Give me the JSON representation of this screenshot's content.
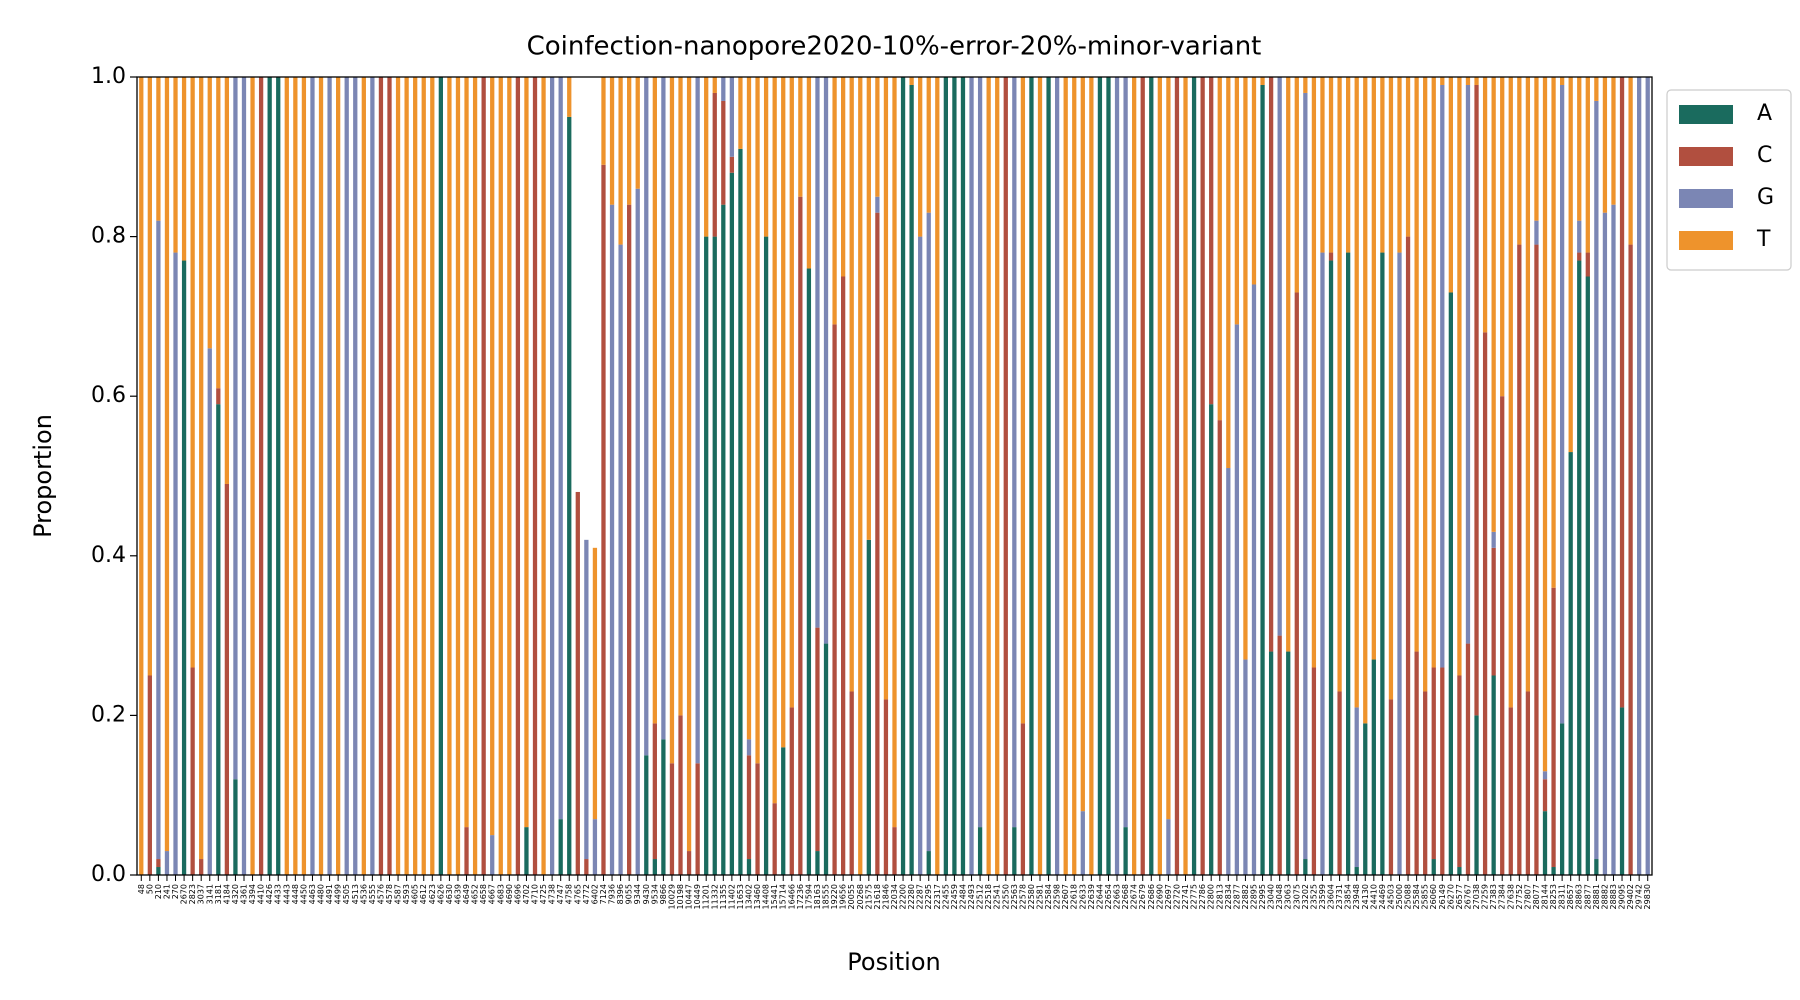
{
  "chart_data": {
    "type": "stacked_bar",
    "title": "Coinfection-nanopore2020-10%-error-20%-minor-variant",
    "x_label": "Position",
    "y_label": "Proportion",
    "legend": "outside upper right",
    "ylim": [
      0,
      1
    ],
    "yticks": [
      {
        "value": 0,
        "label": "0.0"
      },
      {
        "value": 0.2,
        "label": "0.2"
      },
      {
        "value": 0.4,
        "label": "0.4"
      },
      {
        "value": 0.6,
        "label": "0.6"
      },
      {
        "value": 0.8,
        "label": "0.8"
      },
      {
        "value": 1,
        "label": "1.0"
      }
    ],
    "categories": [
      "48",
      "50",
      "210",
      "241",
      "270",
      "2670",
      "2823",
      "3037",
      "3141",
      "3181",
      "4184",
      "4320",
      "4361",
      "4394",
      "4410",
      "4426",
      "4433",
      "4443",
      "4448",
      "4450",
      "4463",
      "4480",
      "4491",
      "4499",
      "4505",
      "4513",
      "4536",
      "4555",
      "4576",
      "4578",
      "4587",
      "4593",
      "4605",
      "4612",
      "4623",
      "4626",
      "4630",
      "4639",
      "4649",
      "4652",
      "4658",
      "4667",
      "4683",
      "4690",
      "4696",
      "4702",
      "4710",
      "4725",
      "4738",
      "4747",
      "4758",
      "4765",
      "4772",
      "6402",
      "7124",
      "7936",
      "8396",
      "9055",
      "9344",
      "9430",
      "9534",
      "9866",
      "10029",
      "10198",
      "10447",
      "10449",
      "11201",
      "11332",
      "11355",
      "11402",
      "11653",
      "13402",
      "13460",
      "14408",
      "15441",
      "15714",
      "16466",
      "17236",
      "17594",
      "18163",
      "18555",
      "19220",
      "19656",
      "20055",
      "20268",
      "21575",
      "21618",
      "21846",
      "22034",
      "22200",
      "22280",
      "22287",
      "22295",
      "22317",
      "22455",
      "22459",
      "22484",
      "22493",
      "22512",
      "22518",
      "22541",
      "22550",
      "22563",
      "22578",
      "22580",
      "22581",
      "22584",
      "22598",
      "22607",
      "22618",
      "22633",
      "22639",
      "22644",
      "22654",
      "22663",
      "22668",
      "22674",
      "22679",
      "22686",
      "22690",
      "22697",
      "22720",
      "22741",
      "22775",
      "22786",
      "22800",
      "22813",
      "22834",
      "22877",
      "22882",
      "22895",
      "22995",
      "23040",
      "23048",
      "23063",
      "23075",
      "23202",
      "23525",
      "23599",
      "23604",
      "23731",
      "23854",
      "23948",
      "24130",
      "24410",
      "24469",
      "24503",
      "25000",
      "25088",
      "25584",
      "25855",
      "26060",
      "26149",
      "26270",
      "26577",
      "26767",
      "27038",
      "27259",
      "27383",
      "27384",
      "27638",
      "27752",
      "27807",
      "28077",
      "28144",
      "28253",
      "28311",
      "28657",
      "28863",
      "28877",
      "28881",
      "28882",
      "28883",
      "29095",
      "29402",
      "29742",
      "29830"
    ],
    "series": [
      {
        "name": "A",
        "color": "#1a6b5e",
        "values": [
          0,
          0,
          0.01,
          0,
          0,
          0.77,
          0,
          0,
          0,
          0.59,
          0,
          0.12,
          0,
          0,
          0,
          1,
          1,
          0,
          0,
          0,
          0,
          0,
          0,
          0,
          0,
          0,
          0,
          0,
          0,
          0,
          0,
          0,
          0,
          0,
          0,
          1,
          0,
          0,
          0,
          0,
          0,
          0,
          0,
          0,
          0,
          0.06,
          0,
          0,
          0,
          0.07,
          0.95,
          0,
          0,
          0,
          0,
          0,
          0,
          0,
          0,
          0.15,
          0.02,
          0.17,
          0,
          0,
          0,
          0,
          0.8,
          0.8,
          0.84,
          0.88,
          0.91,
          0.02,
          0,
          0.8,
          0,
          0.16,
          0,
          0,
          0.76,
          0.03,
          0.29,
          0,
          0,
          0,
          0,
          0.42,
          0,
          0,
          0,
          1,
          0.99,
          0,
          0.03,
          0,
          1,
          1,
          1,
          0,
          0.06,
          0,
          0,
          0,
          0.06,
          0,
          1,
          0,
          1,
          0,
          0,
          0,
          0,
          0,
          1,
          1,
          0,
          0.06,
          0,
          0,
          1,
          0,
          0,
          0,
          0,
          1,
          0,
          0.59,
          0,
          0,
          0,
          0,
          0,
          0.99,
          0.28,
          0,
          0.28,
          0,
          0.02,
          0,
          0,
          0.77,
          0,
          0.78,
          0.01,
          0.19,
          0.27,
          0.78,
          0,
          0,
          0,
          0,
          0,
          0.02,
          0,
          0.73,
          0.01,
          0,
          0.2,
          0,
          0.25,
          0,
          0,
          0,
          0,
          0,
          0.08,
          0.01,
          0.19,
          0.53,
          0.77,
          0.75,
          0.02,
          0,
          0,
          0.21,
          0,
          0,
          0
        ]
      },
      {
        "name": "C",
        "color": "#b14f3f",
        "values": [
          0,
          0.25,
          0.01,
          0,
          0,
          0,
          0.26,
          0.02,
          0,
          0.02,
          0.49,
          0,
          0,
          0,
          1,
          0,
          0,
          0,
          0,
          0,
          0,
          0,
          0,
          0,
          0,
          0,
          0,
          0,
          1,
          1,
          0,
          0,
          0,
          0,
          0,
          0,
          0,
          0,
          0.06,
          0,
          1,
          0,
          0,
          0,
          1,
          0,
          1,
          0,
          0,
          0,
          0,
          0.48,
          0.02,
          0,
          0.89,
          0,
          0,
          0.84,
          0,
          0,
          0.17,
          0,
          0.14,
          0.2,
          0.03,
          0.14,
          0,
          0.18,
          0.13,
          0.02,
          0,
          0.13,
          0.14,
          0,
          0.09,
          0,
          0.21,
          0.85,
          0,
          0.28,
          0,
          0.69,
          0.75,
          0.23,
          0,
          0,
          0.83,
          0.22,
          0.06,
          0,
          0,
          0,
          0,
          0,
          0,
          0,
          0,
          0,
          0,
          0,
          0,
          1,
          0,
          0.19,
          0,
          0,
          0,
          0,
          0,
          0,
          0,
          0,
          0,
          0,
          0,
          0,
          0,
          1,
          0,
          0,
          0,
          1,
          0,
          0,
          1,
          0.41,
          0.57,
          0,
          0,
          0,
          0,
          0,
          0.72,
          0.3,
          0,
          0.73,
          0,
          0.26,
          0,
          0.01,
          0.23,
          0,
          0,
          0,
          0,
          0,
          0.22,
          0,
          0.8,
          0.28,
          0.23,
          0.24,
          0.26,
          0,
          0.24,
          0.29,
          0.79,
          0.68,
          0.16,
          0.6,
          0.21,
          0.79,
          0.23,
          0.79,
          0.04,
          0.35,
          0,
          0,
          0.01,
          0.03,
          0,
          0,
          0,
          0.79,
          0.79,
          0,
          0
        ]
      },
      {
        "name": "G",
        "color": "#7b86b4",
        "values": [
          0,
          0,
          0.8,
          0.03,
          0.78,
          0,
          0,
          0,
          0.66,
          0,
          0,
          0.88,
          1,
          0,
          0,
          0,
          0,
          0,
          0,
          0,
          1,
          0,
          1,
          0,
          1,
          1,
          0,
          1,
          0,
          0,
          0,
          0,
          0,
          0,
          0,
          0,
          0,
          0,
          0,
          0,
          0,
          0.05,
          0,
          0,
          0,
          0,
          0,
          0,
          1,
          0.93,
          0,
          0,
          0.4,
          0.07,
          0,
          0.84,
          0.79,
          0,
          0.86,
          0.85,
          0,
          0.83,
          0,
          0,
          0,
          0.86,
          0,
          0,
          0.03,
          0.1,
          0,
          0.02,
          0,
          0,
          0,
          0,
          0,
          0,
          0,
          0.69,
          0.71,
          0,
          0,
          0,
          0,
          0,
          0.02,
          0,
          0,
          0,
          0,
          0.8,
          0.8,
          0,
          0,
          0,
          0,
          1,
          0.94,
          0,
          0,
          0,
          0.94,
          0,
          0,
          0,
          0,
          1,
          0,
          0,
          0.08,
          0,
          0,
          0,
          1,
          0.94,
          0,
          0,
          0,
          0,
          0.07,
          0,
          0,
          0,
          0,
          0,
          0,
          0.51,
          0.69,
          0.27,
          0.74,
          0,
          0,
          0.7,
          0,
          0,
          0.96,
          0,
          0.78,
          0,
          0,
          0,
          0.2,
          0,
          0,
          0,
          0,
          0.78,
          0,
          0,
          0,
          0,
          0.73,
          0,
          0,
          0.7,
          0,
          0,
          0.02,
          0,
          0,
          0,
          0,
          0.03,
          0.01,
          0,
          0.8,
          0,
          0.04,
          0,
          0.95,
          0.83,
          0.84,
          0,
          0,
          1,
          1
        ]
      },
      {
        "name": "T",
        "color": "#ee932c",
        "values": [
          1,
          0.75,
          0.18,
          0.97,
          0.22,
          0.23,
          0.74,
          0.98,
          0.34,
          0.39,
          0.51,
          0,
          0,
          1,
          0,
          0,
          0,
          1,
          1,
          1,
          0,
          1,
          0,
          1,
          0,
          0,
          1,
          0,
          0,
          0,
          1,
          1,
          1,
          1,
          1,
          0,
          1,
          1,
          0.94,
          1,
          0,
          0.95,
          1,
          1,
          0,
          0.94,
          0,
          1,
          0,
          0,
          0.05,
          0,
          0,
          0.34,
          0.11,
          0.16,
          0.21,
          0.16,
          0.14,
          0,
          0.81,
          0,
          0.86,
          0.8,
          0.97,
          0,
          0.2,
          0.02,
          0,
          0,
          0.09,
          0.83,
          0.86,
          0.2,
          0.91,
          0.84,
          0.79,
          0.15,
          0.24,
          0,
          0,
          0.31,
          0.25,
          0.77,
          1,
          0.58,
          0.15,
          0.78,
          0.94,
          0,
          0.01,
          0.2,
          0.17,
          1,
          0,
          0,
          0,
          0,
          0,
          1,
          1,
          0,
          0,
          0.81,
          0,
          1,
          0,
          0,
          1,
          1,
          0.92,
          1,
          0,
          0,
          0,
          0,
          1,
          0,
          0,
          1,
          0.93,
          0,
          1,
          0,
          0,
          0,
          0.43,
          0.49,
          0.31,
          0.73,
          0.26,
          0.01,
          0,
          0,
          0.72,
          0.27,
          0.02,
          0.74,
          0.22,
          0.22,
          0.77,
          0.22,
          0.79,
          0.81,
          0.73,
          0.22,
          0.78,
          0.22,
          0.2,
          0.72,
          0.77,
          0.74,
          0.01,
          0.27,
          0.75,
          0.01,
          0.01,
          0.32,
          0.57,
          0.4,
          0.79,
          0.21,
          0.77,
          0.18,
          0.87,
          0.64,
          0.01,
          0.47,
          0.18,
          0.22,
          0.03,
          0.17,
          0.16,
          0,
          0.21,
          0,
          0
        ]
      }
    ]
  }
}
